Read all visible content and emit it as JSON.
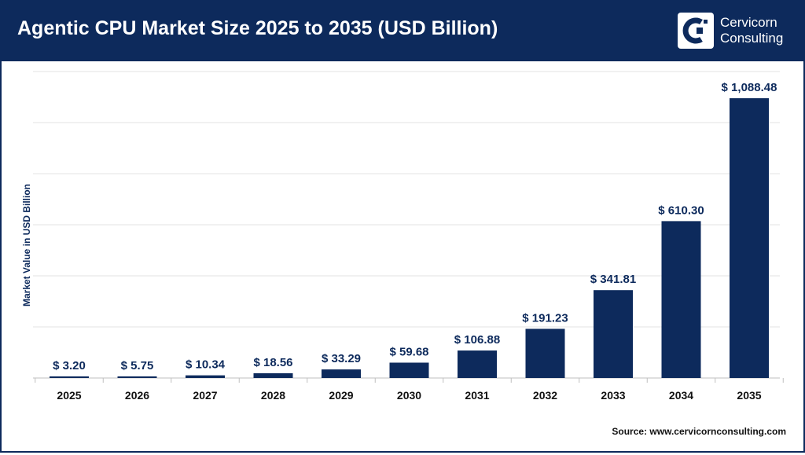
{
  "header": {
    "title": "Agentic CPU Market Size 2025 to 2035 (USD Billion)",
    "logo_line1": "Cervicorn",
    "logo_line2": "Consulting",
    "logo_icon": "cervicorn-logo-icon"
  },
  "source": "Source: www.cervicornconsulting.com",
  "colors": {
    "bar": "#0d2a5c",
    "header": "#0d2a5c",
    "grid": "#e3e3e3"
  },
  "chart_data": {
    "type": "bar",
    "title": "Agentic CPU Market Size 2025 to 2035 (USD Billion)",
    "xlabel": "",
    "ylabel": "Market Value in USD Billion",
    "categories": [
      "2025",
      "2026",
      "2027",
      "2028",
      "2029",
      "2030",
      "2031",
      "2032",
      "2033",
      "2034",
      "2035"
    ],
    "values": [
      3.2,
      5.75,
      10.34,
      18.56,
      33.29,
      59.68,
      106.88,
      191.23,
      341.81,
      610.3,
      1088.48
    ],
    "data_labels": [
      "$ 3.20",
      "$ 5.75",
      "$ 10.34",
      "$ 18.56",
      "$ 33.29",
      "$ 59.68",
      "$ 106.88",
      "$ 191.23",
      "$ 341.81",
      "$ 610.30",
      "$ 1,088.48"
    ],
    "ylim": [
      0,
      1200
    ],
    "grid": true,
    "legend": "none"
  }
}
